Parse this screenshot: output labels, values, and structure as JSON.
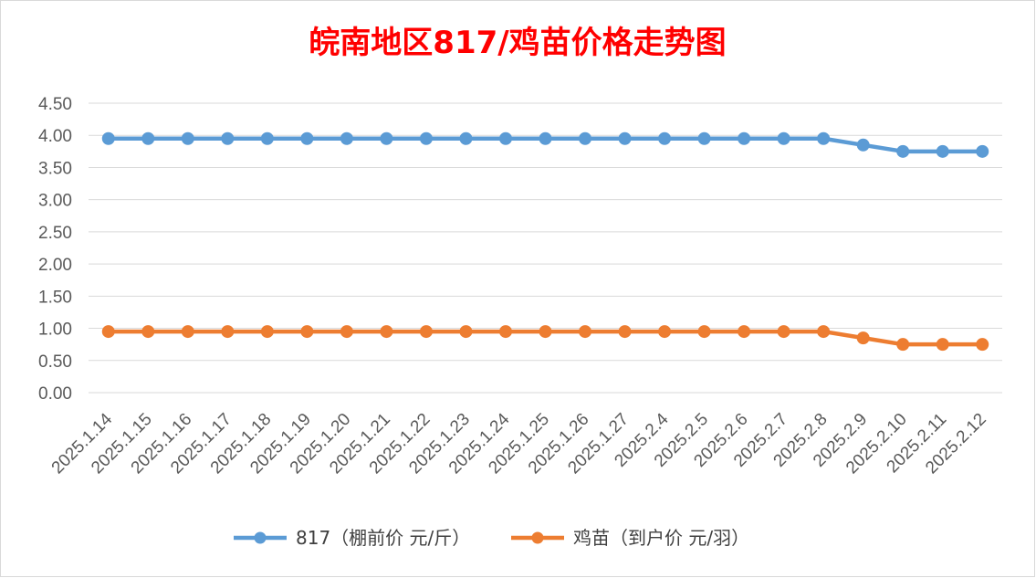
{
  "chart_data": {
    "type": "line",
    "title": "皖南地区817/鸡苗价格走势图",
    "categories": [
      "2025.1.14",
      "2025.1.15",
      "2025.1.16",
      "2025.1.17",
      "2025.1.18",
      "2025.1.19",
      "2025.1.20",
      "2025.1.21",
      "2025.1.22",
      "2025.1.23",
      "2025.1.24",
      "2025.1.25",
      "2025.1.26",
      "2025.1.27",
      "2025.2.4",
      "2025.2.5",
      "2025.2.6",
      "2025.2.7",
      "2025.2.8",
      "2025.2.9",
      "2025.2.10",
      "2025.2.11",
      "2025.2.12"
    ],
    "series": [
      {
        "name": "817（棚前价 元/斤）",
        "color": "#5b9bd5",
        "values": [
          3.95,
          3.95,
          3.95,
          3.95,
          3.95,
          3.95,
          3.95,
          3.95,
          3.95,
          3.95,
          3.95,
          3.95,
          3.95,
          3.95,
          3.95,
          3.95,
          3.95,
          3.95,
          3.95,
          3.85,
          3.75,
          3.75,
          3.75
        ]
      },
      {
        "name": "鸡苗（到户价 元/羽）",
        "color": "#ed7d31",
        "values": [
          0.95,
          0.95,
          0.95,
          0.95,
          0.95,
          0.95,
          0.95,
          0.95,
          0.95,
          0.95,
          0.95,
          0.95,
          0.95,
          0.95,
          0.95,
          0.95,
          0.95,
          0.95,
          0.95,
          0.85,
          0.75,
          0.75,
          0.75
        ]
      }
    ],
    "yticks": [
      "0.00",
      "0.50",
      "1.00",
      "1.50",
      "2.00",
      "2.50",
      "3.00",
      "3.50",
      "4.00",
      "4.50"
    ],
    "ylim": [
      0,
      4.5
    ],
    "grid": true,
    "legend": "bottom",
    "title_color": "#ff0000"
  }
}
